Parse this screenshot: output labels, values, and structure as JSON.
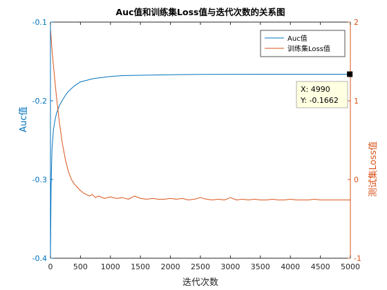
{
  "chart_data": {
    "type": "line",
    "title": "Auc值和训练集Loss值与迭代次数的关系图",
    "xlabel": "迭代次数",
    "ylabel_left": "Auc值",
    "ylabel_right": "测试集Loss值",
    "xlim": [
      0,
      5000
    ],
    "ylim_left": [
      -0.4,
      -0.1
    ],
    "ylim_right": [
      -1,
      2
    ],
    "x_ticks": [
      "0",
      "500",
      "1000",
      "1500",
      "2000",
      "2500",
      "3000",
      "3500",
      "4000",
      "4500",
      "5000"
    ],
    "y_left_ticks": [
      "-0.4",
      "-0.3",
      "-0.2",
      "-0.1"
    ],
    "y_right_ticks": [
      "-1",
      "0",
      "1",
      "2"
    ],
    "grid": false,
    "legend_position": "top-right",
    "colors": {
      "left_axis": "#0072BD",
      "right_axis": "#D95319"
    },
    "series": [
      {
        "name": "Auc值",
        "axis": "left",
        "color": "#0072BD",
        "x": [
          0,
          10,
          25,
          50,
          75,
          100,
          150,
          200,
          250,
          300,
          400,
          500,
          600,
          700,
          800,
          1000,
          1200,
          1500,
          2000,
          2500,
          3000,
          3500,
          4000,
          4500,
          5000
        ],
        "y": [
          -0.4,
          -0.31,
          -0.262,
          -0.237,
          -0.225,
          -0.216,
          -0.206,
          -0.199,
          -0.193,
          -0.188,
          -0.181,
          -0.176,
          -0.174,
          -0.172,
          -0.171,
          -0.169,
          -0.168,
          -0.1675,
          -0.1668,
          -0.1665,
          -0.1663,
          -0.1662,
          -0.1662,
          -0.1662,
          -0.1662
        ]
      },
      {
        "name": "训练集Loss值",
        "axis": "right",
        "color": "#D95319",
        "x": [
          0,
          25,
          50,
          100,
          150,
          200,
          250,
          300,
          350,
          400,
          450,
          500,
          550,
          600,
          650,
          700,
          750,
          800,
          900,
          1000,
          1100,
          1200,
          1300,
          1400,
          1500,
          1600,
          1700,
          1800,
          1900,
          2000,
          2100,
          2200,
          2300,
          2400,
          2500,
          2600,
          2700,
          2800,
          2900,
          3000,
          3100,
          3200,
          3300,
          3400,
          3500,
          3600,
          3700,
          3800,
          3900,
          4000,
          4100,
          4200,
          4300,
          4400,
          4500,
          4600,
          4700,
          4800,
          4900,
          5000
        ],
        "y": [
          1.92,
          1.65,
          1.45,
          1.05,
          0.72,
          0.45,
          0.25,
          0.1,
          0.0,
          -0.06,
          -0.1,
          -0.14,
          -0.17,
          -0.19,
          -0.21,
          -0.19,
          -0.23,
          -0.21,
          -0.24,
          -0.22,
          -0.24,
          -0.23,
          -0.25,
          -0.21,
          -0.24,
          -0.25,
          -0.24,
          -0.25,
          -0.25,
          -0.24,
          -0.25,
          -0.24,
          -0.26,
          -0.25,
          -0.23,
          -0.25,
          -0.26,
          -0.25,
          -0.26,
          -0.23,
          -0.26,
          -0.25,
          -0.26,
          -0.25,
          -0.26,
          -0.26,
          -0.25,
          -0.26,
          -0.26,
          -0.25,
          -0.26,
          -0.26,
          -0.26,
          -0.25,
          -0.26,
          -0.26,
          -0.26,
          -0.26,
          -0.26,
          -0.26
        ]
      }
    ],
    "annotations": [
      {
        "type": "datatip",
        "x": 4990,
        "y": -0.1662,
        "label_x": "X: 4990",
        "label_y": "Y: -0.1662"
      }
    ]
  }
}
